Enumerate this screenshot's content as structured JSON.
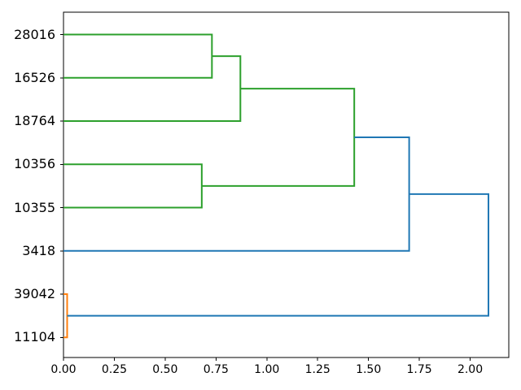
{
  "chart_data": {
    "type": "dendrogram",
    "orientation": "right",
    "title": "",
    "xlabel": "",
    "ylabel": "",
    "grid": false,
    "background": "#ffffff",
    "axis_color": "#000000",
    "colors": {
      "blue": "#1f77b4",
      "orange": "#ff7f0e",
      "green": "#2ca02c"
    },
    "leaves": [
      "28016",
      "16526",
      "18764",
      "10356",
      "10355",
      "3418",
      "39042",
      "11104"
    ],
    "links": [
      {
        "id": "A",
        "children": [
          "28016",
          "16526"
        ],
        "distance": 0.73,
        "color": "green"
      },
      {
        "id": "B",
        "children": [
          "A",
          "18764"
        ],
        "distance": 0.87,
        "color": "green"
      },
      {
        "id": "C",
        "children": [
          "10356",
          "10355"
        ],
        "distance": 0.68,
        "color": "green"
      },
      {
        "id": "D",
        "children": [
          "B",
          "C"
        ],
        "distance": 1.43,
        "color": "green"
      },
      {
        "id": "E",
        "children": [
          "D",
          "3418"
        ],
        "distance": 1.7,
        "color": "blue"
      },
      {
        "id": "F",
        "children": [
          "39042",
          "11104"
        ],
        "distance": 0.018,
        "color": "orange"
      },
      {
        "id": "G",
        "children": [
          "E",
          "F"
        ],
        "distance": 2.09,
        "color": "blue"
      }
    ],
    "x_ticks": [
      "0.00",
      "0.25",
      "0.50",
      "0.75",
      "1.00",
      "1.25",
      "1.50",
      "1.75",
      "2.00"
    ],
    "x_tick_values": [
      0,
      0.25,
      0.5,
      0.75,
      1.0,
      1.25,
      1.5,
      1.75,
      2.0
    ],
    "xlim": [
      0,
      2.19
    ]
  }
}
